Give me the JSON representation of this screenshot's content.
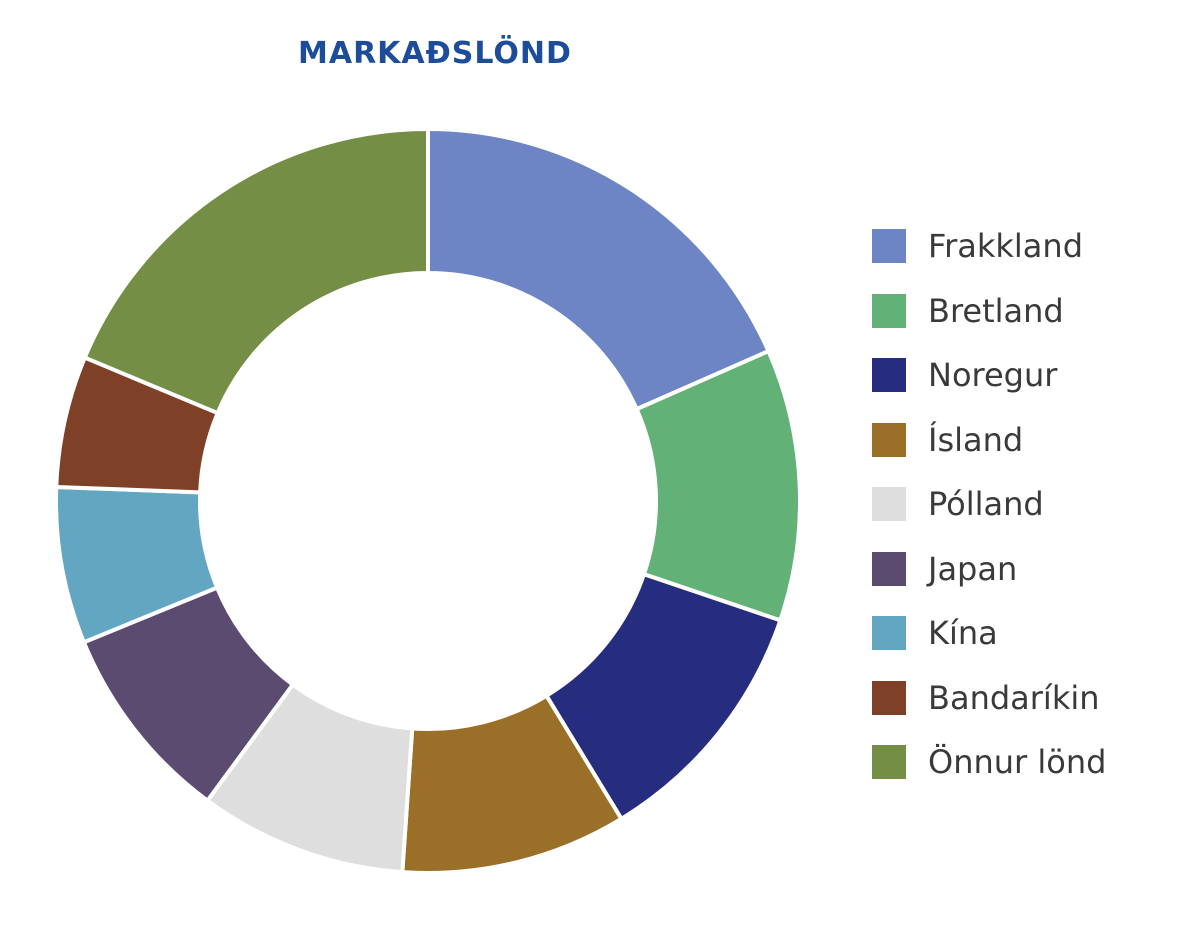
{
  "chart_data": {
    "type": "pie",
    "title": "MARKAÐSLÖND",
    "legend_position": "right",
    "categories": [
      "Frakkland",
      "Bretland",
      "Noregur",
      "Ísland",
      "Pólland",
      "Japan",
      "Kína",
      "Bandaríkin",
      "Önnur lönd"
    ],
    "values": [
      18.4,
      11.8,
      11.1,
      9.8,
      9.0,
      8.7,
      6.8,
      5.7,
      18.7
    ],
    "unit": "%",
    "colors": [
      "#6d85c4",
      "#62b177",
      "#262c7e",
      "#9a7029",
      "#dedede",
      "#5c4b71",
      "#62a6c1",
      "#7e4127",
      "#748f45"
    ]
  }
}
